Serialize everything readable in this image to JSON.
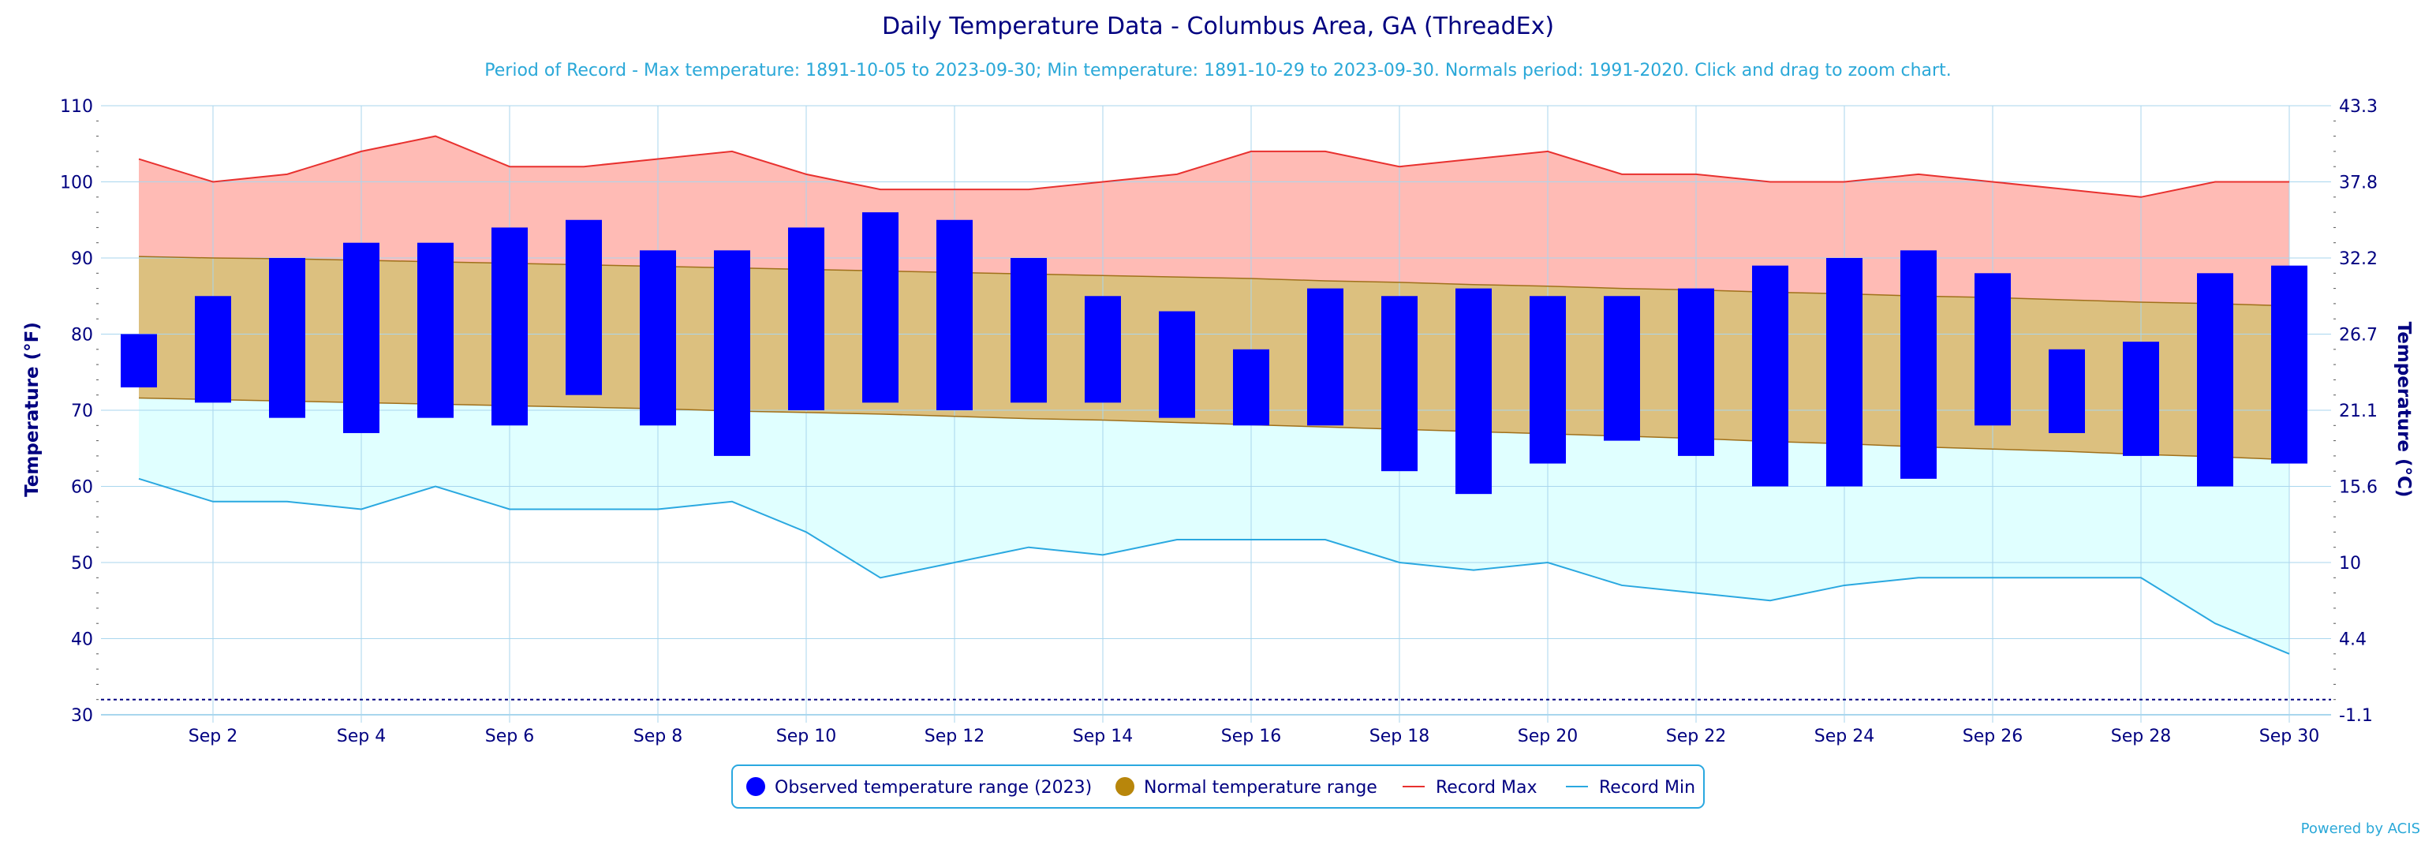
{
  "chart_data": {
    "type": "bar",
    "title": "Daily Temperature Data - Columbus Area, GA (ThreadEx)",
    "subtitle": "Period of Record - Max temperature: 1891-10-05 to 2023-09-30; Min temperature: 1891-10-29 to 2023-09-30. Normals period: 1991-2020. Click and drag to zoom chart.",
    "ylabel": "Temperature (°F)",
    "ylabel_right": "Temperature (°C)",
    "ylim": [
      30,
      110
    ],
    "yticks": [
      30,
      40,
      50,
      60,
      70,
      80,
      90,
      100,
      110
    ],
    "yticks_right": [
      "-1.1",
      "4.4",
      "10",
      "15.6",
      "21.1",
      "26.7",
      "32.2",
      "37.8",
      "43.3"
    ],
    "days": [
      1,
      2,
      3,
      4,
      5,
      6,
      7,
      8,
      9,
      10,
      11,
      12,
      13,
      14,
      15,
      16,
      17,
      18,
      19,
      20,
      21,
      22,
      23,
      24,
      25,
      26,
      27,
      28,
      29,
      30
    ],
    "xtick_labels": [
      "Sep 2",
      "Sep 4",
      "Sep 6",
      "Sep 8",
      "Sep 10",
      "Sep 12",
      "Sep 14",
      "Sep 16",
      "Sep 18",
      "Sep 20",
      "Sep 22",
      "Sep 24",
      "Sep 26",
      "Sep 28",
      "Sep 30"
    ],
    "xtick_days": [
      2,
      4,
      6,
      8,
      10,
      12,
      14,
      16,
      18,
      20,
      22,
      24,
      26,
      28,
      30
    ],
    "freeze_line": 32,
    "grid": true,
    "legend_position": "bottom-center",
    "series": [
      {
        "name": "Observed temperature range (2023)",
        "color": "#0000ff",
        "high": [
          80,
          85,
          90,
          92,
          92,
          94,
          95,
          91,
          91,
          94,
          96,
          95,
          90,
          85,
          83,
          78,
          86,
          85,
          86,
          85,
          85,
          86,
          89,
          90,
          91,
          88,
          78,
          79,
          88,
          89
        ],
        "low": [
          73,
          71,
          69,
          67,
          69,
          68,
          72,
          68,
          64,
          70,
          71,
          70,
          71,
          71,
          69,
          68,
          68,
          62,
          59,
          63,
          66,
          64,
          60,
          60,
          61,
          68,
          67,
          64,
          60,
          63
        ]
      },
      {
        "name": "Normal temperature range",
        "color": "#b8860b",
        "high": [
          90.2,
          90.0,
          89.9,
          89.7,
          89.5,
          89.3,
          89.1,
          88.9,
          88.7,
          88.5,
          88.3,
          88.1,
          87.9,
          87.7,
          87.5,
          87.3,
          87.0,
          86.8,
          86.5,
          86.3,
          86.0,
          85.8,
          85.5,
          85.3,
          85.0,
          84.8,
          84.5,
          84.2,
          84.0,
          83.7
        ],
        "low": [
          71.6,
          71.4,
          71.2,
          71.0,
          70.8,
          70.6,
          70.4,
          70.2,
          69.9,
          69.7,
          69.5,
          69.2,
          68.9,
          68.7,
          68.4,
          68.1,
          67.8,
          67.5,
          67.2,
          66.9,
          66.6,
          66.3,
          65.9,
          65.6,
          65.2,
          64.9,
          64.6,
          64.2,
          63.9,
          63.5
        ]
      },
      {
        "name": "Record Max",
        "color": "#e8312f",
        "values": [
          103,
          100,
          101,
          104,
          106,
          102,
          102,
          103,
          104,
          101,
          99,
          99,
          99,
          100,
          101,
          104,
          104,
          102,
          103,
          104,
          101,
          101,
          100,
          100,
          101,
          100,
          99,
          98,
          100,
          100
        ]
      },
      {
        "name": "Record Min",
        "color": "#2aa8e0",
        "values": [
          61,
          58,
          58,
          57,
          60,
          57,
          57,
          57,
          58,
          54,
          48,
          50,
          52,
          51,
          53,
          53,
          53,
          50,
          49,
          50,
          47,
          46,
          45,
          47,
          48,
          48,
          48,
          48,
          42,
          38
        ]
      }
    ]
  },
  "legend": {
    "observed": "Observed temperature range (2023)",
    "normal": "Normal temperature range",
    "record_max": "Record Max",
    "record_min": "Record Min"
  },
  "credit": "Powered by ACIS",
  "colors": {
    "record_band": "#ffbbb5",
    "normal_band": "#dcc07f",
    "low_band": "#e0ffff",
    "grid": "#a9d6ee",
    "axis_text": "#000080"
  }
}
